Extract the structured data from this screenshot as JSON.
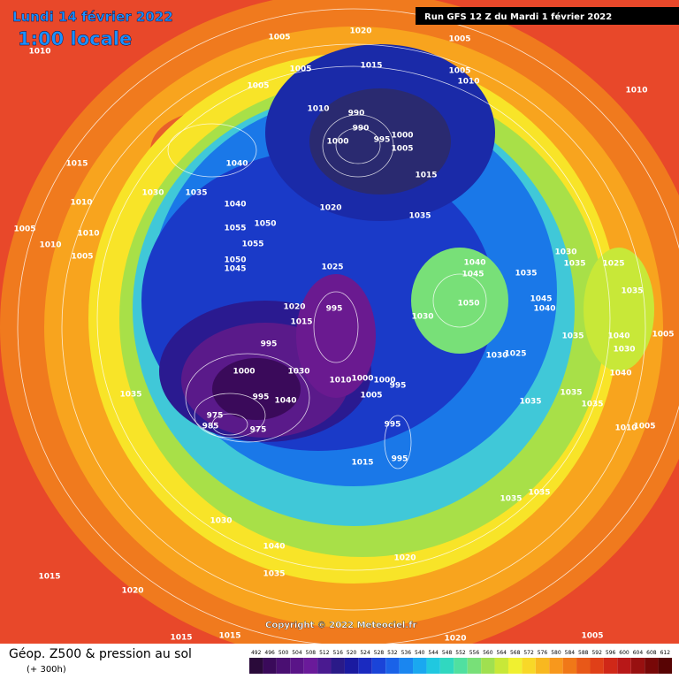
{
  "header": {
    "date": "Lundi 14 février 2022",
    "time": "1:00 locale",
    "run": "Run GFS 12 Z du Mardi 1 février 2022"
  },
  "copyright": "Copyright © 2022 Meteociel.fr",
  "legend": {
    "title": "Géop. Z500 & pression au sol",
    "lead": "(+ 300h)",
    "scale": [
      492,
      496,
      500,
      504,
      508,
      512,
      516,
      520,
      524,
      528,
      532,
      536,
      540,
      544,
      548,
      552,
      556,
      560,
      564,
      568,
      572,
      576,
      580,
      584,
      588,
      592,
      596,
      600,
      604,
      608,
      612
    ],
    "scale_colors": [
      "#2a0a3a",
      "#3a0a5a",
      "#4a0f72",
      "#5a1488",
      "#6a1a9a",
      "#4a1a90",
      "#2a1a88",
      "#1a1aa0",
      "#1a2ac0",
      "#1a44d8",
      "#1a62e8",
      "#1a86f0",
      "#1aa8f0",
      "#20c8e0",
      "#30d8c0",
      "#50e0a0",
      "#78e078",
      "#a0e050",
      "#c8e838",
      "#f0f030",
      "#f8d828",
      "#f8b820",
      "#f8981c",
      "#f07818",
      "#e85818",
      "#e04018",
      "#d02818",
      "#b81818",
      "#981010",
      "#780808",
      "#580404"
    ]
  },
  "pressure_labels": [
    1005,
    1020,
    1005,
    1010,
    1005,
    1015,
    1005,
    1010,
    1005,
    1010,
    1010,
    990,
    990,
    1000,
    1000,
    995,
    1005,
    1015,
    1040,
    1015,
    1030,
    1035,
    1040,
    1020,
    1035,
    1010,
    1005,
    1050,
    1055,
    1010,
    1055,
    1010,
    1005,
    1050,
    1045,
    1025,
    1040,
    1045,
    1035,
    1030,
    1035,
    1025,
    1020,
    995,
    1015,
    1030,
    1050,
    1045,
    1040,
    1035,
    1035,
    1040,
    1005,
    995,
    1030,
    1000,
    1010,
    1000,
    1000,
    995,
    1030,
    1025,
    1030,
    1040,
    1035,
    995,
    1040,
    1005,
    1035,
    1035,
    1035,
    975,
    985,
    975,
    995,
    1010,
    1005,
    995,
    1015,
    1035,
    1035,
    1030,
    1040,
    1020,
    1035,
    1015,
    1020,
    1015,
    1015,
    1020,
    1005
  ]
}
